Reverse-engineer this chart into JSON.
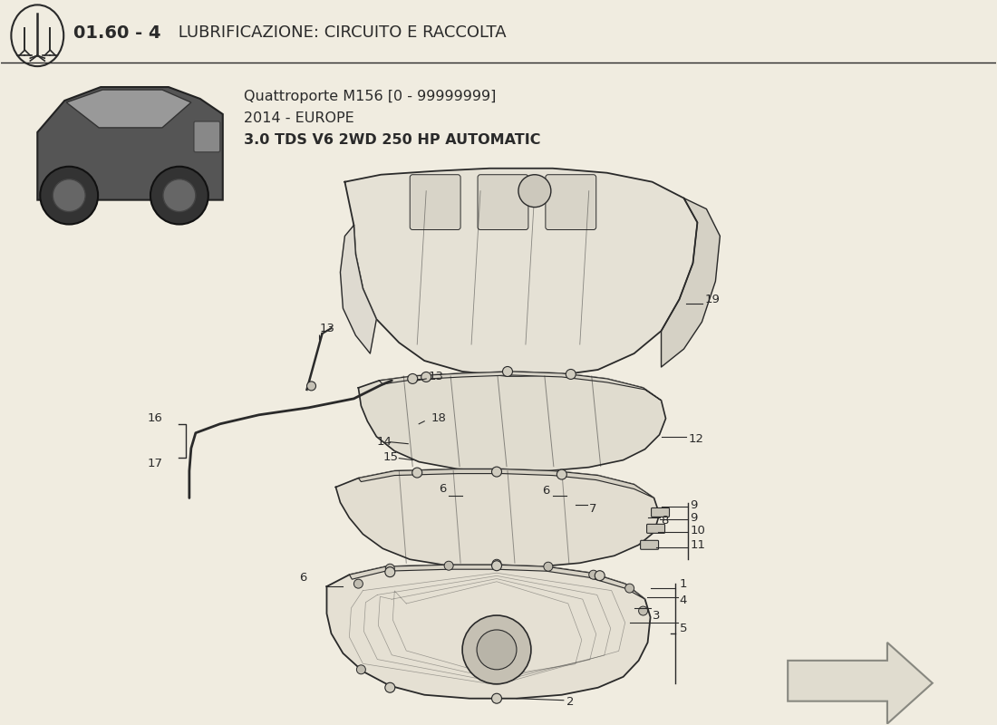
{
  "title_bold": "01.60 - 4",
  "title_regular": " LUBRIFICAZIONE: CIRCUITO E RACCOLTA",
  "subtitle_line1": "Quattroporte M156 [0 - 99999999]",
  "subtitle_line2": "2014 - EUROPE",
  "subtitle_line3": "3.0 TDS V6 2WD 250 HP AUTOMATIC",
  "bg_color": "#f0ece0",
  "text_color": "#1a1a1a",
  "line_color": "#2a2a2a",
  "diagram_bg": "#f0ece0",
  "arrow_color": "#d0ccbc"
}
